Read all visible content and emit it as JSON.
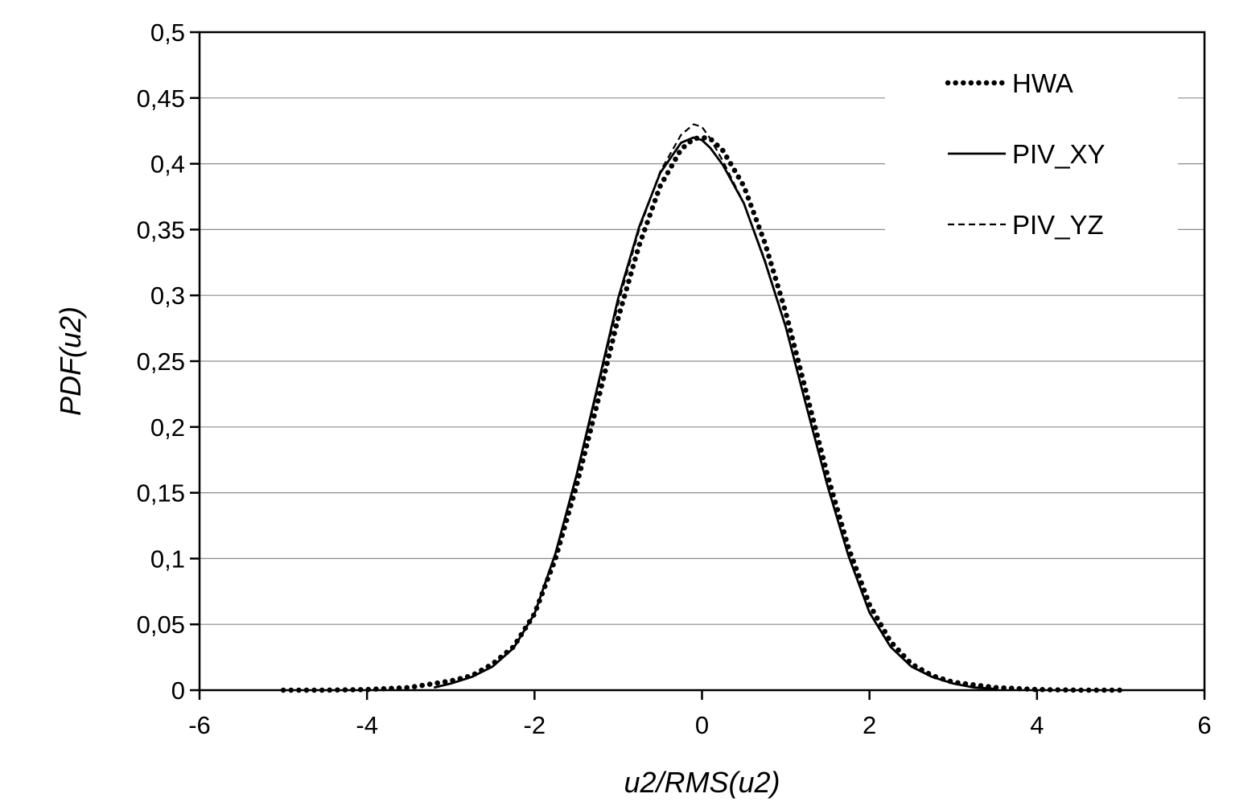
{
  "chart_data": {
    "type": "line",
    "title": "",
    "xlabel": "u2/RMS(u2)",
    "ylabel": "PDF(u2)",
    "xlim": [
      -6,
      6
    ],
    "ylim": [
      0,
      0.5
    ],
    "x_ticks": [
      -6,
      -4,
      -2,
      0,
      2,
      4,
      6
    ],
    "x_tick_labels": [
      "-6",
      "-4",
      "-2",
      "0",
      "2",
      "4",
      "6"
    ],
    "y_ticks": [
      0,
      0.05,
      0.1,
      0.15,
      0.2,
      0.25,
      0.3,
      0.35,
      0.4,
      0.45,
      0.5
    ],
    "y_tick_labels": [
      "0",
      "0,05",
      "0,1",
      "0,15",
      "0,2",
      "0,25",
      "0,3",
      "0,35",
      "0,4",
      "0,45",
      "0,5"
    ],
    "grid": "horizontal",
    "legend_position": "top-right",
    "series": [
      {
        "name": "HWA",
        "style": "dotted",
        "color": "#000000",
        "x": [
          -5.0,
          -4.5,
          -4.0,
          -3.5,
          -3.0,
          -2.75,
          -2.5,
          -2.25,
          -2.0,
          -1.75,
          -1.5,
          -1.25,
          -1.0,
          -0.75,
          -0.5,
          -0.25,
          -0.1,
          0.0,
          0.1,
          0.25,
          0.5,
          0.75,
          1.0,
          1.25,
          1.5,
          1.75,
          2.0,
          2.25,
          2.5,
          2.75,
          3.0,
          3.5,
          4.0,
          4.5,
          5.0
        ],
        "y": [
          0.0,
          0.0,
          0.0005,
          0.002,
          0.007,
          0.011,
          0.02,
          0.033,
          0.058,
          0.1,
          0.155,
          0.218,
          0.283,
          0.338,
          0.383,
          0.411,
          0.419,
          0.42,
          0.419,
          0.41,
          0.383,
          0.34,
          0.287,
          0.225,
          0.163,
          0.108,
          0.065,
          0.037,
          0.02,
          0.011,
          0.006,
          0.002,
          0.0005,
          0.0,
          0.0
        ]
      },
      {
        "name": "PIV_XY",
        "style": "solid",
        "color": "#000000",
        "x": [
          -3.2,
          -3.0,
          -2.75,
          -2.5,
          -2.25,
          -2.0,
          -1.75,
          -1.5,
          -1.25,
          -1.0,
          -0.75,
          -0.5,
          -0.25,
          -0.1,
          0.0,
          0.1,
          0.25,
          0.5,
          0.75,
          1.0,
          1.25,
          1.5,
          1.75,
          2.0,
          2.25,
          2.5,
          2.75,
          3.0,
          3.25,
          3.5
        ],
        "y": [
          0.002,
          0.005,
          0.01,
          0.018,
          0.032,
          0.058,
          0.104,
          0.163,
          0.23,
          0.298,
          0.352,
          0.393,
          0.416,
          0.42,
          0.418,
          0.412,
          0.399,
          0.37,
          0.326,
          0.276,
          0.215,
          0.155,
          0.102,
          0.059,
          0.033,
          0.018,
          0.01,
          0.005,
          0.002,
          0.001
        ]
      },
      {
        "name": "PIV_YZ",
        "style": "dashed",
        "color": "#000000",
        "x": [
          -3.2,
          -3.0,
          -2.75,
          -2.5,
          -2.25,
          -2.0,
          -1.75,
          -1.5,
          -1.25,
          -1.0,
          -0.75,
          -0.5,
          -0.25,
          -0.1,
          0.0,
          0.1,
          0.25,
          0.5,
          0.75,
          1.0,
          1.25,
          1.5,
          1.75,
          2.0,
          2.25,
          2.5,
          2.75,
          3.0,
          3.25,
          3.5
        ],
        "y": [
          0.002,
          0.005,
          0.01,
          0.018,
          0.032,
          0.058,
          0.104,
          0.162,
          0.228,
          0.294,
          0.35,
          0.394,
          0.422,
          0.43,
          0.428,
          0.419,
          0.402,
          0.37,
          0.327,
          0.276,
          0.215,
          0.155,
          0.102,
          0.059,
          0.033,
          0.018,
          0.01,
          0.005,
          0.002,
          0.001
        ]
      }
    ]
  }
}
